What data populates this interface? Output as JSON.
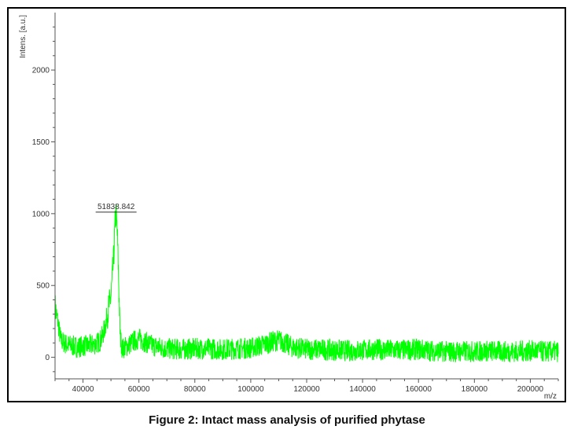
{
  "caption": "Figure 2: Intact mass analysis of purified phytase",
  "chart_data": {
    "type": "line",
    "ylabel": "Intens. [a.u.]",
    "xlabel": "m/z",
    "xlim": [
      30000,
      210000
    ],
    "ylim": [
      -150,
      2400
    ],
    "x_ticks": [
      40000,
      60000,
      80000,
      100000,
      120000,
      140000,
      160000,
      180000,
      200000
    ],
    "y_ticks": [
      0,
      500,
      1000,
      1500,
      2000
    ],
    "peak_annotation": {
      "label": "51838.842",
      "x": 51838.842,
      "y": 1000
    },
    "series": [
      {
        "color": "#00ff00",
        "points": [
          [
            30000,
            350
          ],
          [
            31000,
            250
          ],
          [
            32000,
            120
          ],
          [
            34000,
            90
          ],
          [
            36000,
            80
          ],
          [
            38000,
            70
          ],
          [
            40000,
            80
          ],
          [
            42000,
            80
          ],
          [
            44000,
            90
          ],
          [
            46000,
            110
          ],
          [
            47000,
            150
          ],
          [
            48000,
            220
          ],
          [
            49000,
            330
          ],
          [
            50000,
            420
          ],
          [
            51000,
            700
          ],
          [
            51500,
            950
          ],
          [
            51839,
            1000
          ],
          [
            52300,
            850
          ],
          [
            52800,
            500
          ],
          [
            53300,
            150
          ],
          [
            54000,
            60
          ],
          [
            56000,
            80
          ],
          [
            58000,
            110
          ],
          [
            60000,
            130
          ],
          [
            62000,
            110
          ],
          [
            65000,
            80
          ],
          [
            70000,
            60
          ],
          [
            75000,
            55
          ],
          [
            80000,
            60
          ],
          [
            85000,
            60
          ],
          [
            90000,
            55
          ],
          [
            95000,
            60
          ],
          [
            100000,
            65
          ],
          [
            105000,
            90
          ],
          [
            108000,
            110
          ],
          [
            110000,
            120
          ],
          [
            112000,
            100
          ],
          [
            115000,
            70
          ],
          [
            120000,
            55
          ],
          [
            125000,
            55
          ],
          [
            130000,
            50
          ],
          [
            135000,
            45
          ],
          [
            140000,
            50
          ],
          [
            145000,
            55
          ],
          [
            150000,
            50
          ],
          [
            155000,
            50
          ],
          [
            160000,
            55
          ],
          [
            165000,
            45
          ],
          [
            170000,
            40
          ],
          [
            175000,
            40
          ],
          [
            180000,
            40
          ],
          [
            185000,
            45
          ],
          [
            190000,
            40
          ],
          [
            195000,
            40
          ],
          [
            200000,
            45
          ],
          [
            205000,
            40
          ],
          [
            210000,
            40
          ]
        ],
        "noise_amplitude": 75
      }
    ]
  }
}
